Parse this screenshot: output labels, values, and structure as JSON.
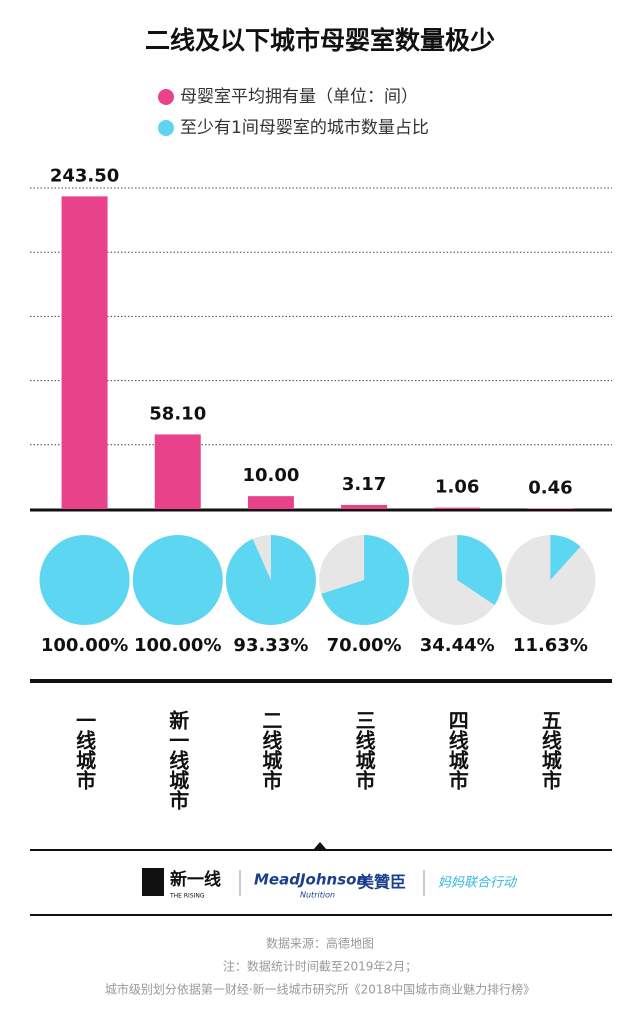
{
  "chart_data": {
    "type": "bar",
    "title": "二线及以下城市母婴室数量极少",
    "categories": [
      "一线城市",
      "新一线城市",
      "二线城市",
      "三线城市",
      "四线城市",
      "五线城市"
    ],
    "ylim": [
      0,
      250
    ],
    "series": [
      {
        "name": "母婴室平均拥有量（单位：间）",
        "color": "#e8438a",
        "type": "bar",
        "values": [
          243.5,
          58.1,
          10,
          3.17,
          1.06,
          0.46
        ],
        "value_labels": [
          "243.50",
          "58.10",
          "10.00",
          "3.17",
          "1.06",
          "0.46"
        ]
      },
      {
        "name": "至少有1间母婴室的城市数量占比",
        "color": "#5dd6f2",
        "type": "pie",
        "values": [
          100,
          100,
          93.33,
          70,
          34.44,
          11.63
        ],
        "value_labels": [
          "100.00%",
          "100.00%",
          "93.33%",
          "70.00%",
          "34.44%",
          "11.63%"
        ]
      }
    ]
  },
  "logos": [
    "新一线",
    "THE RISING",
    "MeadJohnson",
    "Nutrition",
    "美贊臣",
    "妈妈联合行动"
  ],
  "footer": [
    "数据来源：高德地图",
    "注：数据统计时间截至2019年2月；",
    "城市级别划分依据第一财经·新一线城市研究所《2018中国城市商业魅力排行榜》"
  ]
}
